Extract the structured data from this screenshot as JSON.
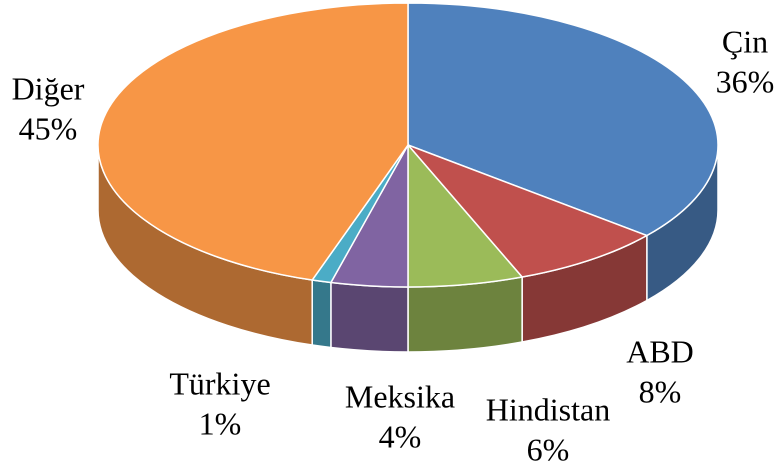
{
  "chart_data": {
    "type": "pie",
    "categories": [
      "Çin",
      "ABD",
      "Hindistan",
      "Meksika",
      "Türkiye",
      "Diğer"
    ],
    "values": [
      36,
      8,
      6,
      4,
      1,
      45
    ],
    "value_labels": [
      "36%",
      "8%",
      "6%",
      "4%",
      "1%",
      "45%"
    ],
    "colors": [
      "#4f81bd",
      "#c0504d",
      "#9bbb59",
      "#8064a2",
      "#4bacc6",
      "#f79646"
    ]
  }
}
